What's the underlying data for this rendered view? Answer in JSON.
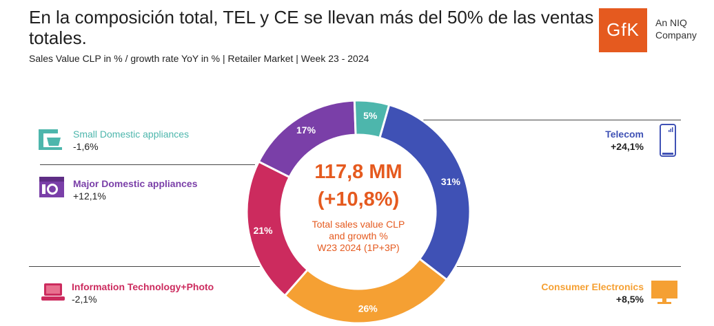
{
  "header": {
    "title": "En la composición total, TEL y CE se llevan más del 50% de las ventas totales.",
    "subtitle": "Sales Value CLP in % / growth rate YoY in % | Retailer Market |  Week 23 - 2024"
  },
  "logo": {
    "text": "GfK",
    "tagline_line1": "An NIQ",
    "tagline_line2": "Company",
    "color": "#e55a1f"
  },
  "center": {
    "value": "117,8 MM",
    "growth": "(+10,8%)",
    "caption_line1": "Total sales value CLP",
    "caption_line2": "and growth %",
    "caption_line3": "W23 2024 (1P+3P)"
  },
  "categories": {
    "sda": {
      "name": "Small Domestic appliances",
      "growth": "-1,6%",
      "color": "#4db6ac",
      "icon": "mixer-icon"
    },
    "mda": {
      "name": "Major Domestic appliances",
      "growth": "+12,1%",
      "color": "#7a3fa8",
      "icon": "washing-machine-icon"
    },
    "it": {
      "name": "Information Technology+Photo",
      "growth": "-2,1%",
      "color": "#cc2b5e",
      "icon": "laptop-icon"
    },
    "tel": {
      "name": "Telecom",
      "growth": "+24,1%",
      "color": "#3f51b5",
      "icon": "smartphone-icon"
    },
    "ce": {
      "name": "Consumer Electronics",
      "growth": "+8,5%",
      "color": "#f5a033",
      "icon": "tv-icon"
    }
  },
  "chart_data": {
    "type": "pie",
    "donut": true,
    "title": "Total sales value CLP and growth % W23 2024 (1P+3P)",
    "labels": [
      "Telecom",
      "Consumer Electronics",
      "Information Technology+Photo",
      "Major Domestic appliances",
      "Small Domestic appliances"
    ],
    "values": [
      31,
      26,
      21,
      17,
      5
    ],
    "value_labels": [
      "31%",
      "26%",
      "21%",
      "17%",
      "5%"
    ],
    "colors": [
      "#3f51b5",
      "#f5a033",
      "#cc2b5e",
      "#7a3fa8",
      "#4db6ac"
    ],
    "start_angle_deg": 16
  }
}
